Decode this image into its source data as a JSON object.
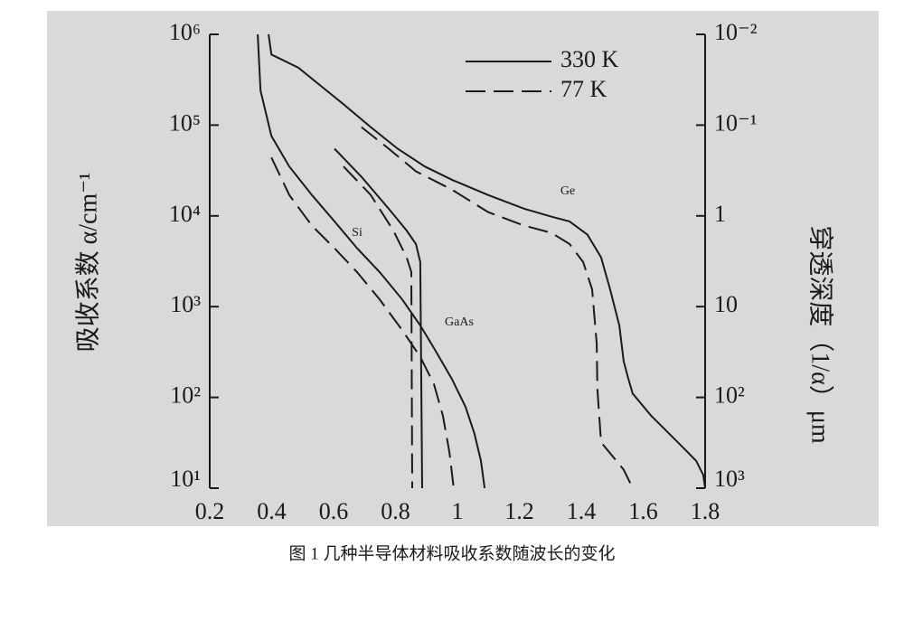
{
  "chart_data": {
    "type": "line",
    "y_label": "吸收系数 α/cm⁻¹",
    "y2_label": "穿透深度（1/α）μm",
    "caption": "图 1  几种半导体材料吸收系数随波长的变化",
    "log_y": true,
    "log_y2": true,
    "xlim": [
      0.2,
      1.8
    ],
    "xticks": [
      0.2,
      0.4,
      0.6,
      0.8,
      1,
      1.2,
      1.4,
      1.6,
      1.8
    ],
    "ylim": [
      10,
      1000000
    ],
    "yticks": [
      {
        "value": 10,
        "label": "10¹"
      },
      {
        "value": 100,
        "label": "10²"
      },
      {
        "value": 1000,
        "label": "10³"
      },
      {
        "value": 10000,
        "label": "10⁴"
      },
      {
        "value": 100000,
        "label": "10⁵"
      },
      {
        "value": 1000000,
        "label": "10⁶"
      }
    ],
    "y2lim": [
      1000,
      0.01
    ],
    "y2ticks": [
      {
        "value": 1000,
        "label": "10³"
      },
      {
        "value": 100,
        "label": "10²"
      },
      10,
      1,
      {
        "value": 0.1,
        "label": "10⁻¹"
      },
      {
        "value": 0.01,
        "label": "10⁻²"
      }
    ],
    "annotations": [
      "Si",
      "GaAs",
      "Ge"
    ],
    "series": [
      {
        "name": "330 K",
        "dash": "solid",
        "color": "#1a1a1a",
        "curves": [
          {
            "x": [
              0.355,
              0.364,
              0.399,
              0.457,
              0.53,
              0.603,
              0.676,
              0.749,
              0.822,
              0.88,
              0.924,
              0.982,
              1.026,
              1.055,
              1.076,
              1.088
            ],
            "values": [
              1000000,
              240000,
              76000,
              35000,
              17000,
              8700,
              4400,
              2400,
              1200,
              620,
              350,
              160,
              79,
              40,
              20,
              10
            ]
          },
          {
            "x": [
              0.603,
              0.69,
              0.778,
              0.836,
              0.866,
              0.88,
              0.886
            ],
            "values": [
              55000,
              27000,
              12000,
              6900,
              4900,
              3100,
              10
            ]
          },
          {
            "x": [
              0.39,
              0.399,
              0.486,
              0.559,
              0.632,
              0.72,
              0.807,
              0.895,
              0.982,
              1.099,
              1.216,
              1.304,
              1.362,
              1.42,
              1.464,
              1.493,
              1.523,
              1.537,
              1.552,
              1.566,
              1.625,
              1.712,
              1.771,
              1.794,
              1.8
            ],
            "values": [
              1000000,
              600000,
              430000,
              270000,
              170000,
              95000,
              55000,
              35000,
              25000,
              17000,
              12000,
              9800,
              8700,
              6200,
              3500,
              1550,
              620,
              250,
              160,
              110,
              63,
              32,
              20,
              14,
              10
            ]
          }
        ]
      },
      {
        "name": "77 K",
        "dash": "dashed",
        "color": "#1a1a1a",
        "curves": [
          {
            "x": [
              0.399,
              0.457,
              0.53,
              0.603,
              0.676,
              0.749,
              0.822,
              0.88,
              0.924,
              0.953,
              0.974,
              0.988
            ],
            "values": [
              44000,
              17000,
              7800,
              4400,
              2400,
              1200,
              550,
              280,
              140,
              63,
              25,
              10
            ]
          },
          {
            "x": [
              0.632,
              0.72,
              0.793,
              0.836,
              0.851,
              0.854
            ],
            "values": [
              35000,
              17000,
              6900,
              3500,
              2400,
              10
            ]
          },
          {
            "x": [
              0.69,
              0.778,
              0.866,
              0.982,
              1.099,
              1.216,
              1.304,
              1.362,
              1.406,
              1.435,
              1.45,
              1.452,
              1.464,
              1.537,
              1.566
            ],
            "values": [
              95000,
              55000,
              31000,
              19500,
              11000,
              7800,
              6500,
              4900,
              3100,
              1550,
              390,
              125,
              32,
              16,
              10
            ]
          }
        ]
      }
    ]
  }
}
